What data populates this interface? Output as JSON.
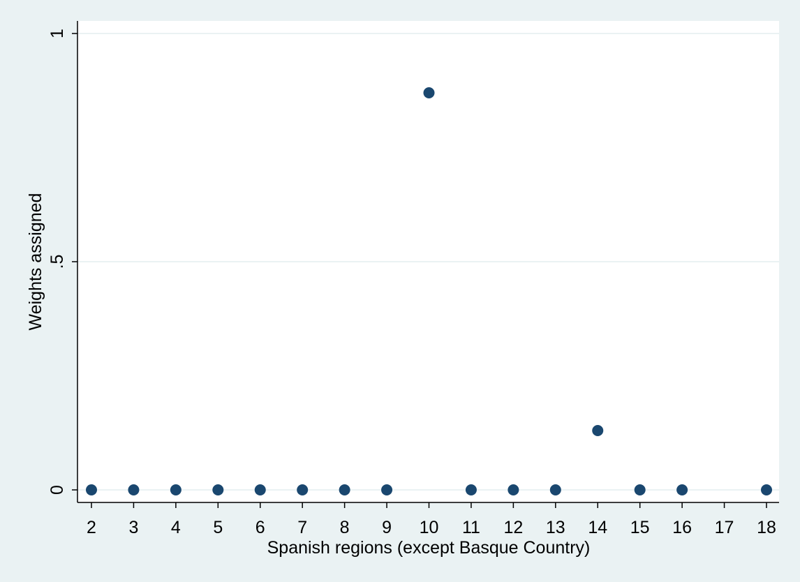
{
  "chart_data": {
    "type": "scatter",
    "title": "",
    "xlabel": "Spanish regions (except Basque Country)",
    "ylabel": "Weights assigned",
    "xlim": [
      2,
      18
    ],
    "ylim": [
      0,
      1
    ],
    "x_ticks": [
      2,
      3,
      4,
      5,
      6,
      7,
      8,
      9,
      10,
      11,
      12,
      13,
      14,
      15,
      16,
      17,
      18
    ],
    "y_ticks": [
      {
        "value": 0,
        "label": "0"
      },
      {
        "value": 0.5,
        "label": ".5"
      },
      {
        "value": 1,
        "label": "1"
      }
    ],
    "grid": "horizontal",
    "series": [
      {
        "x": [
          2,
          3,
          4,
          5,
          6,
          7,
          8,
          9,
          10,
          11,
          12,
          13,
          14,
          15,
          16,
          18
        ],
        "y": [
          0,
          0,
          0,
          0,
          0,
          0,
          0,
          0,
          0.87,
          0,
          0,
          0,
          0.13,
          0,
          0,
          0
        ]
      }
    ],
    "colors": {
      "marker": "#1a476f",
      "plot_background": "#ffffff",
      "outer_background": "#eaf2f3",
      "gridline": "#eaf2f3",
      "axis": "#000000"
    }
  }
}
